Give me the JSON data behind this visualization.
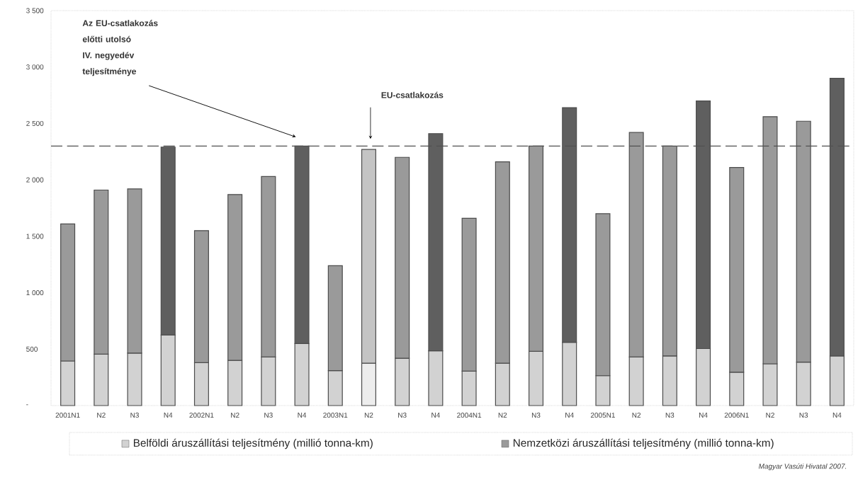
{
  "chart_data": {
    "type": "bar",
    "stacked": true,
    "categories": [
      "2001N1",
      "N2",
      "N3",
      "N4",
      "2002N1",
      "N2",
      "N3",
      "N4",
      "2003N1",
      "N2",
      "N3",
      "N4",
      "2004N1",
      "N2",
      "N3",
      "N4",
      "2005N1",
      "N2",
      "N3",
      "N4",
      "2006N1",
      "N2",
      "N3",
      "N4"
    ],
    "series": [
      {
        "name": "Belföldi áruszállítási teljesítmény (millió tonna-km)",
        "color": "#d2d2d2",
        "values": [
          395,
          455,
          465,
          625,
          380,
          400,
          430,
          550,
          310,
          375,
          420,
          485,
          305,
          375,
          480,
          560,
          265,
          430,
          440,
          505,
          295,
          370,
          385,
          440
        ],
        "colors": [
          "#d2d2d2",
          "#d2d2d2",
          "#d2d2d2",
          "#d2d2d2",
          "#d2d2d2",
          "#d2d2d2",
          "#d2d2d2",
          "#d2d2d2",
          "#d2d2d2",
          "#ededed",
          "#d2d2d2",
          "#d2d2d2",
          "#d2d2d2",
          "#d2d2d2",
          "#d2d2d2",
          "#d2d2d2",
          "#d2d2d2",
          "#d2d2d2",
          "#d2d2d2",
          "#d2d2d2",
          "#d2d2d2",
          "#d2d2d2",
          "#d2d2d2",
          "#d2d2d2"
        ]
      },
      {
        "name": "Nemzetközi áruszállítási teljesítmény (millió tonna-km)",
        "color": "#9a9a9a",
        "values": [
          1215,
          1455,
          1455,
          1665,
          1170,
          1470,
          1600,
          1750,
          930,
          1895,
          1780,
          1925,
          1355,
          1785,
          1820,
          2080,
          1435,
          1990,
          1860,
          2195,
          1815,
          2190,
          2135,
          2460
        ],
        "colors": [
          "#9a9a9a",
          "#9a9a9a",
          "#9a9a9a",
          "#5f5f5f",
          "#9a9a9a",
          "#9a9a9a",
          "#9a9a9a",
          "#5f5f5f",
          "#9a9a9a",
          "#c4c4c4",
          "#9a9a9a",
          "#5f5f5f",
          "#9a9a9a",
          "#9a9a9a",
          "#9a9a9a",
          "#5f5f5f",
          "#9a9a9a",
          "#9a9a9a",
          "#9a9a9a",
          "#5f5f5f",
          "#9a9a9a",
          "#9a9a9a",
          "#9a9a9a",
          "#5f5f5f"
        ]
      }
    ],
    "ylim": [
      0,
      3500
    ],
    "yticks": [
      {
        "value": 0,
        "label": "-"
      },
      {
        "value": 500,
        "label": "500"
      },
      {
        "value": 1000,
        "label": "1 000"
      },
      {
        "value": 1500,
        "label": "1 500"
      },
      {
        "value": 2000,
        "label": "2 000"
      },
      {
        "value": 2500,
        "label": "2 500"
      },
      {
        "value": 3000,
        "label": "3 000"
      },
      {
        "value": 3500,
        "label": "3 500"
      }
    ],
    "ref_lines": [
      {
        "axis": "y",
        "value": 2300,
        "color": "#505050",
        "line_style": "dashed"
      }
    ],
    "annotations": [
      "Az EU-csatlakozás előtti utolsó IV. negyedév teljesítménye",
      "EU-csatlakozás",
      "Magyar Vasúti Hivatal 2007."
    ],
    "legend": "bottom",
    "grid": false
  }
}
